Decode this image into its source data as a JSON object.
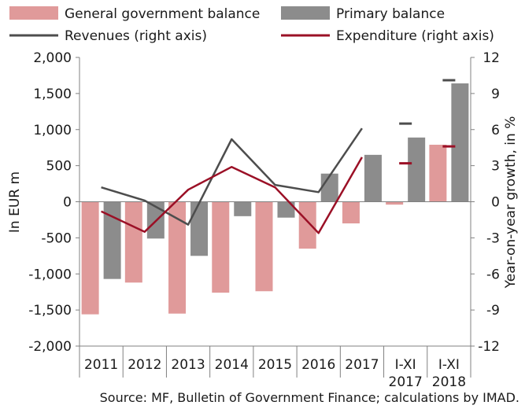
{
  "chart_data": {
    "type": "bar",
    "categories": [
      "2011",
      "2012",
      "2013",
      "2014",
      "2015",
      "2016",
      "2017",
      "I-XI\n2017",
      "I-XI\n2018"
    ],
    "series": [
      {
        "name": "General government balance",
        "kind": "bar",
        "axis": "left",
        "color": "#e09a9a",
        "values": [
          -1560,
          -1120,
          -1550,
          -1260,
          -1240,
          -650,
          -300,
          -40,
          790
        ]
      },
      {
        "name": "Primary balance",
        "kind": "bar",
        "axis": "left",
        "color": "#8c8c8c",
        "values": [
          -1070,
          -510,
          -750,
          -200,
          -220,
          390,
          650,
          890,
          1640
        ]
      },
      {
        "name": "Revenues  (right axis)",
        "kind": "line",
        "axis": "right",
        "color": "#4d4d4d",
        "values": [
          1.2,
          0.1,
          -1.9,
          5.2,
          1.4,
          0.8,
          6.1,
          6.5,
          10.1
        ]
      },
      {
        "name": "Expenditure  (right axis)",
        "kind": "line",
        "axis": "right",
        "color": "#9b1026",
        "values": [
          -0.8,
          -2.5,
          1.0,
          2.9,
          1.2,
          -2.6,
          3.7,
          3.2,
          4.6
        ]
      }
    ],
    "left_axis": {
      "label": "In EUR m",
      "range": [
        -2000,
        2000
      ],
      "ticks": [
        2000,
        1500,
        1000,
        500,
        0,
        -500,
        -1000,
        -1500,
        -2000
      ],
      "tick_labels": [
        "2,000",
        "1,500",
        "1,000",
        "500",
        "0",
        "-500",
        "-1,000",
        "-1,500",
        "-2,000"
      ]
    },
    "right_axis": {
      "label": "Year-on-year growth, in %",
      "range": [
        -12,
        12
      ],
      "ticks": [
        12,
        9,
        6,
        3,
        0,
        -3,
        -6,
        -9,
        -12
      ],
      "tick_labels": [
        "12",
        "9",
        "6",
        "3",
        "0",
        "-3",
        "-6",
        "-9",
        "-12"
      ]
    },
    "legend_position": "top",
    "grid": false,
    "note": "Source: MF, Bulletin of Government Finance; calculations by IMAD."
  }
}
